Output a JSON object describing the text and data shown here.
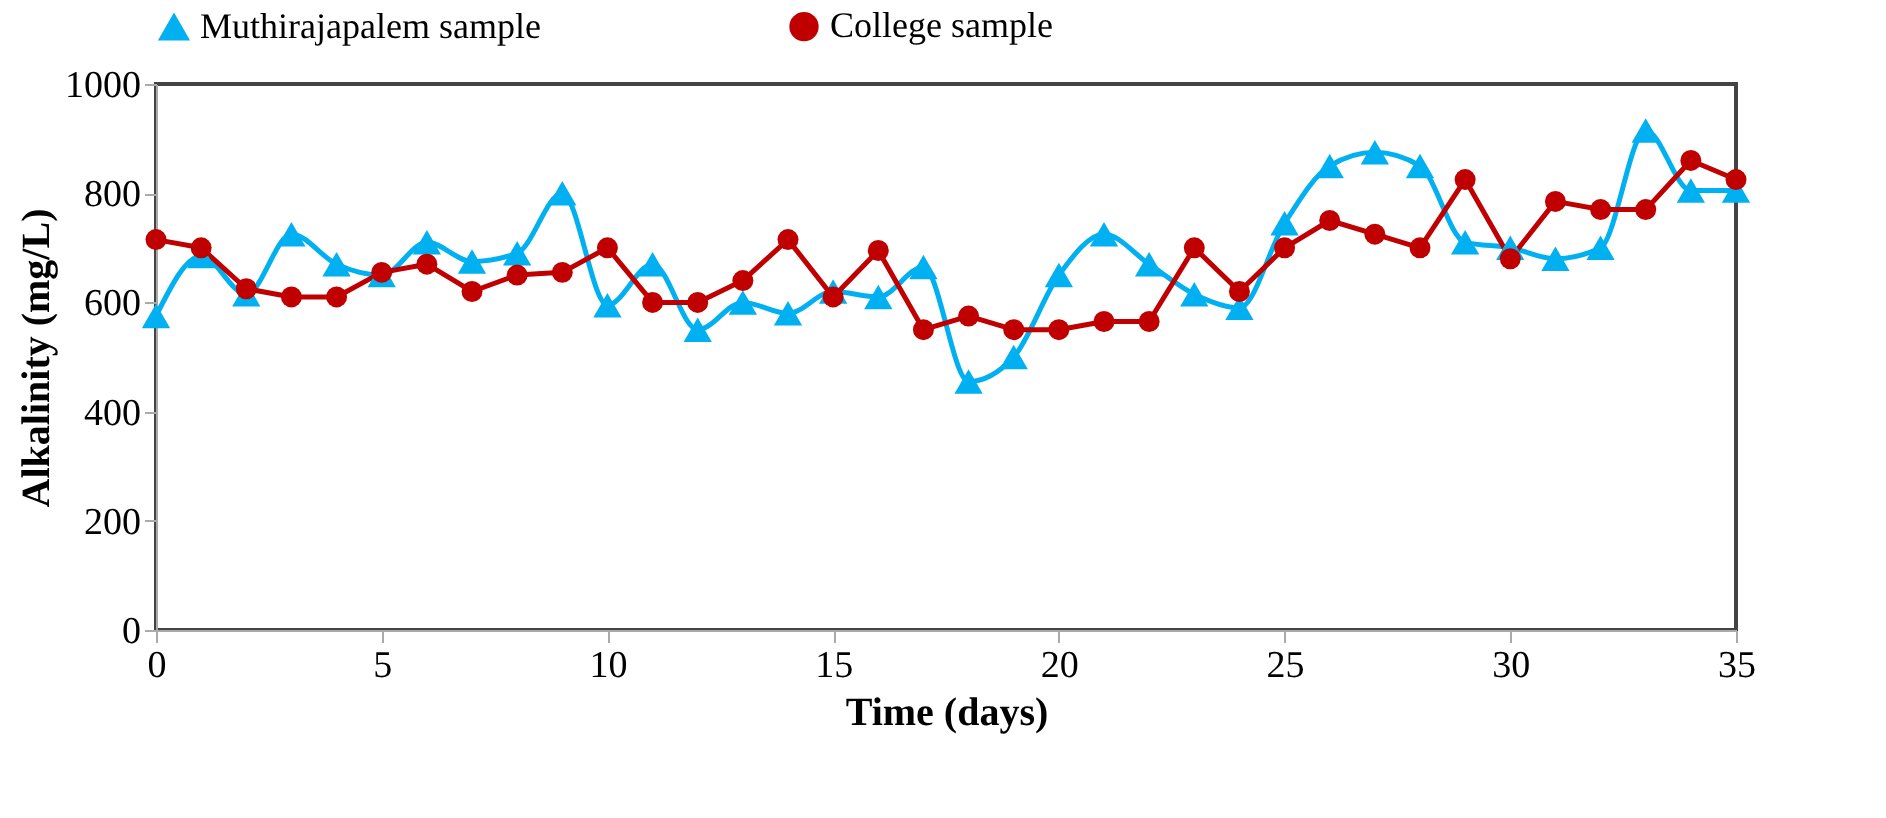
{
  "chart_data": {
    "type": "line",
    "xlabel": "Time (days)",
    "ylabel": "Alkalinity (mg/L)",
    "x": [
      0,
      1,
      2,
      3,
      4,
      5,
      6,
      7,
      8,
      9,
      10,
      11,
      12,
      13,
      14,
      15,
      16,
      17,
      18,
      19,
      20,
      21,
      22,
      23,
      24,
      25,
      26,
      27,
      28,
      29,
      30,
      31,
      32,
      33,
      34,
      35
    ],
    "xlim": [
      0,
      35
    ],
    "xticks": [
      0,
      5,
      10,
      15,
      20,
      25,
      30,
      35
    ],
    "ylim": [
      0,
      1000
    ],
    "yticks": [
      0,
      200,
      400,
      600,
      800,
      1000
    ],
    "grid": false,
    "legend": "top",
    "series": [
      {
        "name": "Muthirajapalem sample",
        "color": "#00b0f0",
        "marker": "triangle",
        "values": [
          575,
          685,
          615,
          725,
          670,
          650,
          710,
          675,
          690,
          800,
          595,
          670,
          550,
          600,
          580,
          620,
          610,
          665,
          455,
          500,
          650,
          725,
          670,
          615,
          590,
          745,
          850,
          875,
          850,
          710,
          700,
          680,
          700,
          915,
          805,
          805
        ]
      },
      {
        "name": "College sample",
        "color": "#c00000",
        "marker": "circle",
        "values": [
          715,
          700,
          625,
          610,
          610,
          655,
          670,
          620,
          650,
          655,
          700,
          600,
          600,
          640,
          715,
          610,
          695,
          550,
          575,
          550,
          550,
          565,
          565,
          700,
          620,
          700,
          750,
          725,
          700,
          825,
          680,
          785,
          770,
          770,
          860,
          825
        ]
      }
    ]
  }
}
